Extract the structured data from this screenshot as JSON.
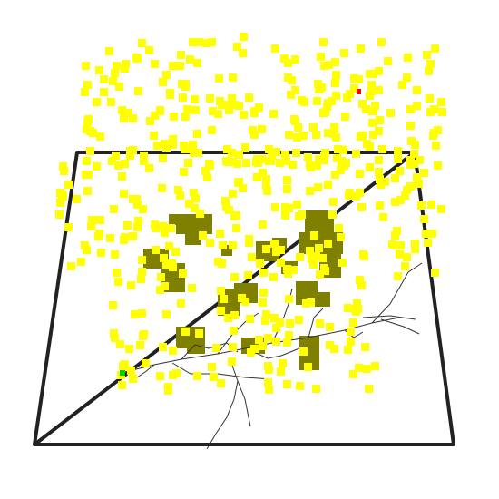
{
  "scene": {
    "colors": {
      "background": "#ffffff",
      "frame": "#222222",
      "point": "#ffff00",
      "cluster": "#808000",
      "branch": "#333333",
      "start_marker": "#00cc00",
      "end_marker": "#ff0000"
    }
  }
}
